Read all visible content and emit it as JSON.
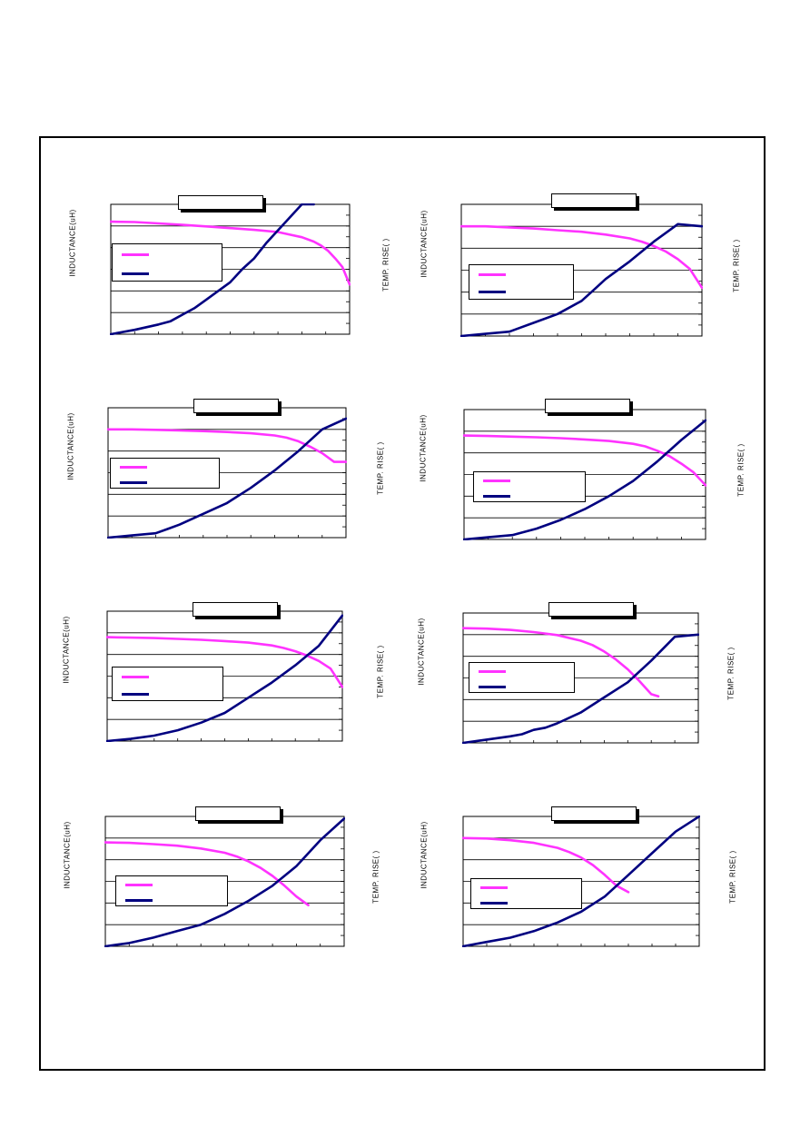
{
  "labels": {
    "y_left": "INDUCTANCE(uH)",
    "y_right": "TEMP. RISE(   )"
  },
  "colors": {
    "inductance": "#ff33ff",
    "temp_rise": "#000080",
    "frame": "#000000",
    "grid": "#000000"
  },
  "chart_data": [
    {
      "type": "line",
      "title": "",
      "xlabel": "",
      "ylabel": "INDUCTANCE(uH)",
      "y2label": "TEMP. RISE(   )",
      "grid": "horizontal",
      "legend": "center-left",
      "xlim": [
        0,
        100
      ],
      "ylim": [
        0,
        6
      ],
      "y2lim": [
        0,
        6
      ],
      "series": [
        {
          "axis": "left",
          "color": "#ff33ff",
          "x": [
            0,
            10,
            20,
            30,
            40,
            50,
            60,
            70,
            75,
            80,
            85,
            88,
            91,
            94,
            97,
            100
          ],
          "y": [
            5.2,
            5.18,
            5.12,
            5.05,
            4.98,
            4.9,
            4.82,
            4.72,
            4.6,
            4.48,
            4.28,
            4.1,
            3.85,
            3.5,
            3.1,
            2.3
          ]
        },
        {
          "axis": "right",
          "color": "#000080",
          "x": [
            0,
            10,
            20,
            25,
            30,
            35,
            40,
            45,
            50,
            55,
            60,
            65,
            70,
            75,
            80,
            85
          ],
          "y": [
            0,
            0.2,
            0.45,
            0.6,
            0.9,
            1.2,
            1.6,
            2.0,
            2.4,
            3.0,
            3.5,
            4.2,
            4.8,
            5.4,
            6.0,
            6.0
          ]
        }
      ]
    },
    {
      "type": "line",
      "title": "",
      "xlabel": "",
      "ylabel": "INDUCTANCE(uH)",
      "y2label": "TEMP. RISE(   )",
      "grid": "horizontal",
      "legend": "center-left",
      "xlim": [
        0,
        100
      ],
      "ylim": [
        0,
        6
      ],
      "y2lim": [
        0,
        6
      ],
      "series": [
        {
          "axis": "left",
          "color": "#ff33ff",
          "x": [
            0,
            10,
            20,
            30,
            40,
            50,
            60,
            70,
            75,
            80,
            85,
            90,
            95,
            100
          ],
          "y": [
            5.0,
            5.0,
            4.95,
            4.9,
            4.82,
            4.75,
            4.62,
            4.45,
            4.3,
            4.1,
            3.85,
            3.5,
            3.05,
            2.2
          ]
        },
        {
          "axis": "right",
          "color": "#000080",
          "x": [
            0,
            10,
            20,
            25,
            30,
            40,
            50,
            55,
            60,
            70,
            80,
            90,
            100
          ],
          "y": [
            0,
            0.1,
            0.2,
            0.4,
            0.6,
            1.0,
            1.6,
            2.1,
            2.6,
            3.4,
            4.3,
            5.1,
            5.0
          ]
        }
      ]
    },
    {
      "type": "line",
      "title": "",
      "xlabel": "",
      "ylabel": "INDUCTANCE(uH)",
      "y2label": "TEMP. RISE(   )",
      "grid": "horizontal",
      "legend": "center-left",
      "xlim": [
        0,
        100
      ],
      "ylim": [
        0,
        6
      ],
      "y2lim": [
        0,
        6
      ],
      "series": [
        {
          "axis": "left",
          "color": "#ff33ff",
          "x": [
            0,
            10,
            20,
            30,
            40,
            50,
            60,
            70,
            75,
            80,
            85,
            90,
            95,
            100
          ],
          "y": [
            5.0,
            5.0,
            4.98,
            4.95,
            4.92,
            4.88,
            4.82,
            4.72,
            4.62,
            4.45,
            4.2,
            3.9,
            3.5,
            3.5
          ]
        },
        {
          "axis": "right",
          "color": "#000080",
          "x": [
            0,
            10,
            20,
            25,
            30,
            40,
            50,
            60,
            70,
            80,
            90,
            100
          ],
          "y": [
            0,
            0.1,
            0.2,
            0.4,
            0.6,
            1.1,
            1.6,
            2.3,
            3.1,
            4.0,
            5.0,
            5.5
          ]
        }
      ]
    },
    {
      "type": "line",
      "title": "",
      "xlabel": "",
      "ylabel": "INDUCTANCE(uH)",
      "y2label": "TEMP. RISE(   )",
      "grid": "horizontal",
      "legend": "center-left",
      "xlim": [
        0,
        100
      ],
      "ylim": [
        0,
        6
      ],
      "y2lim": [
        0,
        6
      ],
      "series": [
        {
          "axis": "left",
          "color": "#ff33ff",
          "x": [
            0,
            10,
            20,
            30,
            40,
            50,
            60,
            70,
            75,
            80,
            85,
            90,
            95,
            100
          ],
          "y": [
            4.8,
            4.78,
            4.75,
            4.72,
            4.68,
            4.62,
            4.55,
            4.42,
            4.3,
            4.1,
            3.85,
            3.5,
            3.1,
            2.5
          ]
        },
        {
          "axis": "right",
          "color": "#000080",
          "x": [
            0,
            10,
            20,
            30,
            40,
            50,
            60,
            70,
            80,
            90,
            100
          ],
          "y": [
            0,
            0.1,
            0.2,
            0.5,
            0.9,
            1.4,
            2.0,
            2.7,
            3.6,
            4.6,
            5.5
          ]
        }
      ]
    },
    {
      "type": "line",
      "title": "",
      "xlabel": "",
      "ylabel": "INDUCTANCE(uH)",
      "y2label": "TEMP. RISE(   )",
      "grid": "horizontal",
      "legend": "center-left",
      "xlim": [
        0,
        100
      ],
      "ylim": [
        0,
        6
      ],
      "y2lim": [
        0,
        6
      ],
      "series": [
        {
          "axis": "left",
          "color": "#ff33ff",
          "x": [
            0,
            10,
            20,
            30,
            40,
            50,
            60,
            70,
            75,
            80,
            85,
            90,
            95,
            100
          ],
          "y": [
            4.8,
            4.78,
            4.76,
            4.72,
            4.68,
            4.62,
            4.55,
            4.42,
            4.3,
            4.15,
            3.95,
            3.7,
            3.35,
            2.5
          ]
        },
        {
          "axis": "right",
          "color": "#000080",
          "x": [
            0,
            10,
            20,
            30,
            40,
            50,
            60,
            70,
            80,
            90,
            100
          ],
          "y": [
            0,
            0.1,
            0.25,
            0.5,
            0.85,
            1.3,
            2.0,
            2.7,
            3.5,
            4.4,
            5.8
          ]
        }
      ]
    },
    {
      "type": "line",
      "title": "",
      "xlabel": "",
      "ylabel": "INDUCTANCE(uH)",
      "y2label": "TEMP. RISE(   )",
      "grid": "horizontal",
      "legend": "center-left",
      "xlim": [
        0,
        100
      ],
      "ylim": [
        0,
        6
      ],
      "y2lim": [
        0,
        6
      ],
      "series": [
        {
          "axis": "left",
          "color": "#ff33ff",
          "x": [
            0,
            10,
            20,
            30,
            40,
            50,
            55,
            60,
            65,
            70,
            75,
            80,
            83
          ],
          "y": [
            5.3,
            5.28,
            5.22,
            5.12,
            4.98,
            4.72,
            4.52,
            4.22,
            3.85,
            3.4,
            2.85,
            2.25,
            2.15
          ]
        },
        {
          "axis": "right",
          "color": "#000080",
          "x": [
            0,
            10,
            20,
            25,
            30,
            35,
            40,
            50,
            60,
            70,
            80,
            90,
            100
          ],
          "y": [
            0,
            0.15,
            0.3,
            0.4,
            0.6,
            0.7,
            0.9,
            1.4,
            2.1,
            2.8,
            3.8,
            4.9,
            5.0
          ]
        }
      ]
    },
    {
      "type": "line",
      "title": "",
      "xlabel": "",
      "ylabel": "INDUCTANCE(uH)",
      "y2label": "TEMP. RISE(   )",
      "grid": "horizontal",
      "legend": "center-left",
      "xlim": [
        0,
        100
      ],
      "ylim": [
        0,
        6
      ],
      "y2lim": [
        0,
        6
      ],
      "series": [
        {
          "axis": "left",
          "color": "#ff33ff",
          "x": [
            0,
            10,
            20,
            30,
            40,
            50,
            55,
            60,
            65,
            70,
            75,
            80,
            85
          ],
          "y": [
            4.8,
            4.78,
            4.72,
            4.65,
            4.52,
            4.32,
            4.15,
            3.92,
            3.62,
            3.25,
            2.8,
            2.3,
            1.9
          ]
        },
        {
          "axis": "right",
          "color": "#000080",
          "x": [
            0,
            10,
            20,
            30,
            40,
            50,
            60,
            70,
            80,
            90,
            100
          ],
          "y": [
            0,
            0.15,
            0.4,
            0.7,
            1.0,
            1.5,
            2.1,
            2.8,
            3.7,
            4.9,
            5.9
          ]
        }
      ]
    },
    {
      "type": "line",
      "title": "",
      "xlabel": "",
      "ylabel": "INDUCTANCE(uH)",
      "y2label": "TEMP. RISE(   )",
      "grid": "horizontal",
      "legend": "center-left",
      "xlim": [
        0,
        100
      ],
      "ylim": [
        0,
        6
      ],
      "y2lim": [
        0,
        6
      ],
      "series": [
        {
          "axis": "left",
          "color": "#ff33ff",
          "x": [
            0,
            10,
            20,
            30,
            40,
            45,
            50,
            55,
            60,
            65,
            70
          ],
          "y": [
            5.0,
            4.98,
            4.9,
            4.78,
            4.55,
            4.35,
            4.1,
            3.75,
            3.3,
            2.8,
            2.5
          ]
        },
        {
          "axis": "right",
          "color": "#000080",
          "x": [
            0,
            10,
            20,
            30,
            35,
            40,
            50,
            60,
            70,
            80,
            90,
            100
          ],
          "y": [
            0,
            0.2,
            0.4,
            0.7,
            0.9,
            1.1,
            1.6,
            2.3,
            3.3,
            4.3,
            5.3,
            6.0
          ]
        }
      ]
    }
  ]
}
